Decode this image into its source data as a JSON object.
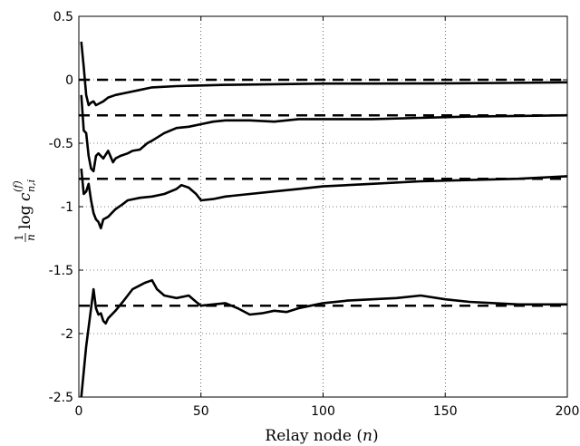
{
  "chart_data": {
    "type": "line",
    "title": "",
    "xlabel": "Relay node (n)",
    "xlabel_parts": {
      "text": "Relay node (",
      "var": "n",
      "close": ")"
    },
    "ylabel_parts": {
      "frac_num": "1",
      "frac_den": "n",
      "func": "log",
      "base": "c",
      "sup": "(f)",
      "sub": "n,i"
    },
    "xlim": [
      0,
      200
    ],
    "ylim": [
      -2.5,
      0.5
    ],
    "xticks": [
      0,
      50,
      100,
      150,
      200
    ],
    "yticks": [
      0.5,
      0,
      -0.5,
      -1,
      -1.5,
      -2,
      -2.5
    ],
    "xtick_labels": [
      "0",
      "50",
      "100",
      "150",
      "200"
    ],
    "ytick_labels": [
      "0.5",
      "0",
      "-0.5",
      "-1",
      "-1.5",
      "-2",
      "-2.5"
    ],
    "grid": true,
    "colors": {
      "line": "#000000",
      "grid": "#000000"
    },
    "reference_lines": [
      {
        "y": 0.0
      },
      {
        "y": -0.28
      },
      {
        "y": -0.78
      },
      {
        "y": -1.78
      }
    ],
    "series": [
      {
        "x": [
          1,
          2,
          3,
          4,
          5,
          6,
          7,
          8,
          10,
          12,
          15,
          20,
          25,
          30,
          40,
          50,
          60,
          80,
          100,
          120,
          150,
          175,
          200
        ],
        "y": [
          0.3,
          0.1,
          -0.12,
          -0.2,
          -0.18,
          -0.17,
          -0.2,
          -0.19,
          -0.17,
          -0.14,
          -0.12,
          -0.1,
          -0.08,
          -0.06,
          -0.05,
          -0.045,
          -0.04,
          -0.035,
          -0.03,
          -0.03,
          -0.028,
          -0.025,
          -0.02
        ]
      },
      {
        "x": [
          1,
          2,
          3,
          4,
          5,
          6,
          7,
          8,
          10,
          12,
          14,
          15,
          17,
          20,
          22,
          25,
          28,
          30,
          35,
          40,
          45,
          50,
          55,
          60,
          70,
          80,
          90,
          100,
          120,
          140,
          160,
          180,
          200
        ],
        "y": [
          -0.12,
          -0.4,
          -0.42,
          -0.6,
          -0.7,
          -0.72,
          -0.6,
          -0.58,
          -0.62,
          -0.56,
          -0.65,
          -0.62,
          -0.6,
          -0.58,
          -0.56,
          -0.55,
          -0.5,
          -0.48,
          -0.42,
          -0.38,
          -0.37,
          -0.35,
          -0.33,
          -0.32,
          -0.32,
          -0.33,
          -0.31,
          -0.31,
          -0.31,
          -0.3,
          -0.29,
          -0.285,
          -0.28
        ]
      },
      {
        "x": [
          1,
          2,
          3,
          4,
          5,
          6,
          7,
          8,
          9,
          10,
          12,
          15,
          18,
          20,
          25,
          30,
          35,
          40,
          42,
          45,
          48,
          50,
          55,
          60,
          70,
          80,
          90,
          100,
          120,
          140,
          160,
          180,
          200
        ],
        "y": [
          -0.7,
          -0.9,
          -0.88,
          -0.82,
          -0.95,
          -1.05,
          -1.1,
          -1.12,
          -1.17,
          -1.1,
          -1.08,
          -1.02,
          -0.98,
          -0.95,
          -0.93,
          -0.92,
          -0.9,
          -0.86,
          -0.83,
          -0.85,
          -0.9,
          -0.95,
          -0.94,
          -0.92,
          -0.9,
          -0.88,
          -0.86,
          -0.84,
          -0.82,
          -0.8,
          -0.79,
          -0.78,
          -0.76
        ]
      },
      {
        "x": [
          1,
          2,
          3,
          4,
          5,
          6,
          7,
          8,
          9,
          10,
          11,
          12,
          15,
          18,
          20,
          22,
          25,
          27,
          30,
          32,
          35,
          40,
          45,
          48,
          50,
          55,
          60,
          65,
          70,
          75,
          80,
          85,
          90,
          95,
          100,
          110,
          120,
          130,
          140,
          150,
          160,
          170,
          180,
          190,
          200
        ],
        "y": [
          -2.5,
          -2.3,
          -2.1,
          -1.95,
          -1.8,
          -1.65,
          -1.8,
          -1.85,
          -1.84,
          -1.9,
          -1.92,
          -1.88,
          -1.82,
          -1.75,
          -1.7,
          -1.65,
          -1.62,
          -1.6,
          -1.58,
          -1.65,
          -1.7,
          -1.72,
          -1.7,
          -1.75,
          -1.78,
          -1.77,
          -1.76,
          -1.8,
          -1.85,
          -1.84,
          -1.82,
          -1.83,
          -1.8,
          -1.78,
          -1.76,
          -1.74,
          -1.73,
          -1.72,
          -1.7,
          -1.73,
          -1.75,
          -1.76,
          -1.77,
          -1.77,
          -1.77
        ]
      }
    ]
  }
}
